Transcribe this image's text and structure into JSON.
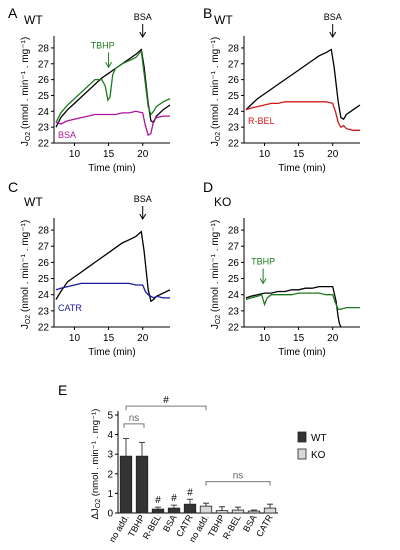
{
  "colors": {
    "black": "#000000",
    "tbhp": "#1f7a1f",
    "bsa": "#b0139b",
    "rbel": "#d01818",
    "catr": "#1a1a9e",
    "ko_bar": "#d9d9d9",
    "wt_bar": "#333333",
    "error_bar": "#444444",
    "bracket": "#777777"
  },
  "chart_data": [
    {
      "type": "line",
      "panel": "A",
      "strain": "WT",
      "xlabel": "Time (min)",
      "ylabel": "J_O2 (nmol . min⁻¹ . mg⁻¹)",
      "xlim": [
        7,
        24
      ],
      "ylim": [
        22,
        28.5
      ],
      "xticks": [
        10,
        15,
        20
      ],
      "yticks": [
        22,
        23,
        24,
        25,
        26,
        27,
        28
      ],
      "arrow": {
        "label": "BSA",
        "x": 20
      },
      "extra_arrow": {
        "label": "TBHP",
        "x": 15,
        "color": "#1f7a1f"
      },
      "series": [
        {
          "name": "",
          "color": "#000000",
          "x": [
            7.3,
            8,
            9,
            10,
            11,
            12,
            13,
            14,
            15,
            16,
            17,
            18,
            19,
            19.8,
            20.2,
            20.8,
            21.2,
            21.6,
            22,
            23,
            24
          ],
          "y": [
            23.0,
            23.6,
            24.1,
            24.5,
            24.9,
            25.3,
            25.7,
            26.1,
            26.4,
            26.7,
            27.0,
            27.3,
            27.6,
            27.9,
            26.8,
            24.5,
            23.4,
            23.3,
            23.7,
            24.1,
            24.4
          ]
        },
        {
          "name": "TBHP",
          "color": "#1f7a1f",
          "x": [
            7.3,
            8,
            9,
            10,
            11,
            12,
            13,
            14,
            14.5,
            14.9,
            15.2,
            15.6,
            16,
            17,
            18,
            19,
            19.8,
            20.2,
            20.8,
            21.2,
            21.6,
            22,
            23,
            24
          ],
          "y": [
            23.3,
            23.9,
            24.4,
            24.8,
            25.2,
            25.6,
            26.0,
            26.0,
            25.6,
            24.7,
            24.9,
            26.3,
            26.7,
            27.0,
            27.2,
            27.4,
            27.8,
            26.4,
            24.3,
            23.8,
            24.0,
            24.3,
            24.6,
            24.8
          ]
        },
        {
          "name": "BSA",
          "color": "#b0139b",
          "x": [
            7.3,
            8,
            9,
            10,
            11,
            12,
            13,
            14,
            15,
            16,
            17,
            18,
            19,
            20,
            20.4,
            20.8,
            21.2,
            21.6,
            22,
            23,
            24
          ],
          "y": [
            23.3,
            23.2,
            23.4,
            23.5,
            23.6,
            23.7,
            23.8,
            23.8,
            23.8,
            23.8,
            23.9,
            23.9,
            24.0,
            23.9,
            23.1,
            22.5,
            22.6,
            23.4,
            23.6,
            23.7,
            23.7
          ]
        }
      ],
      "legend": [
        {
          "label": "TBHP",
          "color": "#1f7a1f"
        },
        {
          "label": "BSA",
          "color": "#b0139b"
        }
      ]
    },
    {
      "type": "line",
      "panel": "B",
      "strain": "WT",
      "xlabel": "Time (min)",
      "ylabel": "J_O2 (nmol . min⁻¹ . mg⁻¹)",
      "xlim": [
        7,
        24
      ],
      "ylim": [
        22,
        28.5
      ],
      "xticks": [
        10,
        15,
        20
      ],
      "yticks": [
        22,
        23,
        24,
        25,
        26,
        27,
        28
      ],
      "arrow": {
        "label": "BSA",
        "x": 20
      },
      "series": [
        {
          "name": "",
          "color": "#000000",
          "x": [
            7.3,
            8,
            9,
            10,
            11,
            12,
            13,
            14,
            15,
            16,
            17,
            18,
            19,
            19.8,
            20.2,
            20.8,
            21.2,
            21.6,
            22,
            23,
            24
          ],
          "y": [
            24.1,
            24.4,
            24.8,
            25.1,
            25.4,
            25.7,
            26.0,
            26.3,
            26.6,
            26.9,
            27.2,
            27.5,
            27.7,
            27.9,
            26.8,
            24.6,
            23.6,
            23.5,
            23.8,
            24.1,
            24.4
          ]
        },
        {
          "name": "R-BEL",
          "color": "#d01818",
          "x": [
            7.3,
            8,
            9,
            10,
            11,
            12,
            13,
            14,
            15,
            16,
            17,
            18,
            19,
            20,
            20.4,
            20.8,
            21.2,
            21.6,
            22,
            23,
            24
          ],
          "y": [
            24.1,
            24.2,
            24.3,
            24.4,
            24.5,
            24.5,
            24.6,
            24.6,
            24.6,
            24.6,
            24.6,
            24.6,
            24.6,
            24.5,
            24.0,
            23.3,
            23.0,
            23.1,
            22.9,
            22.8,
            22.8
          ]
        }
      ],
      "legend": [
        {
          "label": "R-BEL",
          "color": "#d01818"
        }
      ]
    },
    {
      "type": "line",
      "panel": "C",
      "strain": "WT",
      "xlabel": "Time (min)",
      "ylabel": "J_O2 (nmol . min⁻¹ . mg⁻¹)",
      "xlim": [
        7,
        24
      ],
      "ylim": [
        22,
        28.5
      ],
      "xticks": [
        10,
        15,
        20
      ],
      "yticks": [
        22,
        23,
        24,
        25,
        26,
        27,
        28
      ],
      "arrow": {
        "label": "BSA",
        "x": 20
      },
      "series": [
        {
          "name": "",
          "color": "#000000",
          "x": [
            7.3,
            8,
            9,
            10,
            11,
            12,
            13,
            14,
            15,
            16,
            17,
            18,
            19,
            19.8,
            20.2,
            20.8,
            21.2,
            21.6,
            22,
            23,
            24
          ],
          "y": [
            23.7,
            24.2,
            24.8,
            25.1,
            25.4,
            25.7,
            26.0,
            26.3,
            26.6,
            26.9,
            27.2,
            27.4,
            27.6,
            27.9,
            26.7,
            24.3,
            23.6,
            23.7,
            23.9,
            24.1,
            24.3
          ]
        },
        {
          "name": "CATR",
          "color": "#1a1a9e",
          "x": [
            7.3,
            8,
            9,
            10,
            11,
            12,
            13,
            14,
            15,
            16,
            17,
            18,
            19,
            20,
            20.4,
            20.8,
            21.2,
            21.6,
            22,
            23,
            24
          ],
          "y": [
            24.3,
            24.4,
            24.5,
            24.6,
            24.7,
            24.7,
            24.7,
            24.7,
            24.7,
            24.7,
            24.7,
            24.7,
            24.6,
            24.6,
            24.2,
            24.0,
            23.9,
            23.8,
            23.9,
            23.8,
            23.8
          ]
        }
      ],
      "legend": [
        {
          "label": "CATR",
          "color": "#1a1a9e"
        }
      ]
    },
    {
      "type": "line",
      "panel": "D",
      "strain": "KO",
      "xlabel": "Time (min)",
      "ylabel": "J_O2 (nmol . min⁻¹ . mg⁻¹)",
      "xlim": [
        7,
        24
      ],
      "ylim": [
        22,
        28.5
      ],
      "xticks": [
        10,
        15,
        20
      ],
      "yticks": [
        22,
        23,
        24,
        25,
        26,
        27,
        28
      ],
      "extra_arrow": {
        "label": "TBHP",
        "x": 9.8,
        "color": "#1f7a1f"
      },
      "series": [
        {
          "name": "",
          "color": "#000000",
          "x": [
            7.3,
            8,
            9,
            10,
            11,
            12,
            13,
            14,
            15,
            16,
            17,
            18,
            19,
            20,
            20.5,
            20.8,
            21.0,
            21.2
          ],
          "y": [
            23.8,
            23.9,
            24.0,
            24.1,
            24.1,
            24.2,
            24.2,
            24.3,
            24.3,
            24.4,
            24.4,
            24.5,
            24.5,
            24.5,
            23.6,
            22.6,
            22.2,
            22.0
          ]
        },
        {
          "name": "TBHP",
          "color": "#1f7a1f",
          "x": [
            7.3,
            8,
            9,
            9.6,
            10,
            10.4,
            11,
            12,
            13,
            14,
            15,
            16,
            17,
            18,
            19,
            20,
            20.4,
            20.8,
            21.2,
            22,
            23,
            24
          ],
          "y": [
            23.7,
            23.8,
            23.9,
            24.0,
            23.4,
            23.8,
            24.0,
            24.0,
            24.0,
            24.0,
            24.1,
            24.1,
            24.1,
            24.1,
            24.0,
            24.0,
            23.5,
            23.1,
            23.1,
            23.2,
            23.2,
            23.2
          ]
        }
      ],
      "legend": []
    },
    {
      "type": "bar",
      "panel": "E",
      "ylabel": "ΔJ_O2 (nmol . min⁻¹ . mg⁻¹)",
      "ylim": [
        0,
        5
      ],
      "yticks": [
        0,
        1,
        2,
        3,
        4,
        5
      ],
      "categories": [
        "no add.",
        "TBHP",
        "R-BEL",
        "BSA",
        "CATR",
        "no add.",
        "TBHP",
        "R-BEL",
        "BSA",
        "CATR"
      ],
      "groups": [
        "WT",
        "WT",
        "WT",
        "WT",
        "WT",
        "KO",
        "KO",
        "KO",
        "KO",
        "KO"
      ],
      "values": [
        2.9,
        2.9,
        0.2,
        0.25,
        0.45,
        0.35,
        0.12,
        0.15,
        0.1,
        0.25
      ],
      "errors": [
        0.9,
        0.7,
        0.1,
        0.15,
        0.25,
        0.15,
        0.2,
        0.15,
        0.05,
        0.2
      ],
      "bar_marks": [
        "",
        "",
        "#",
        "#",
        "#",
        "",
        "",
        "",
        "",
        ""
      ],
      "brackets": [
        {
          "from": 0,
          "to": 1,
          "label": "ns"
        },
        {
          "from": 0,
          "to": 5,
          "label": "#"
        },
        {
          "from": 5,
          "to": 9,
          "label": "ns"
        }
      ],
      "legend": [
        {
          "label": "WT",
          "color": "#333333"
        },
        {
          "label": "KO",
          "color": "#d9d9d9"
        }
      ]
    }
  ]
}
